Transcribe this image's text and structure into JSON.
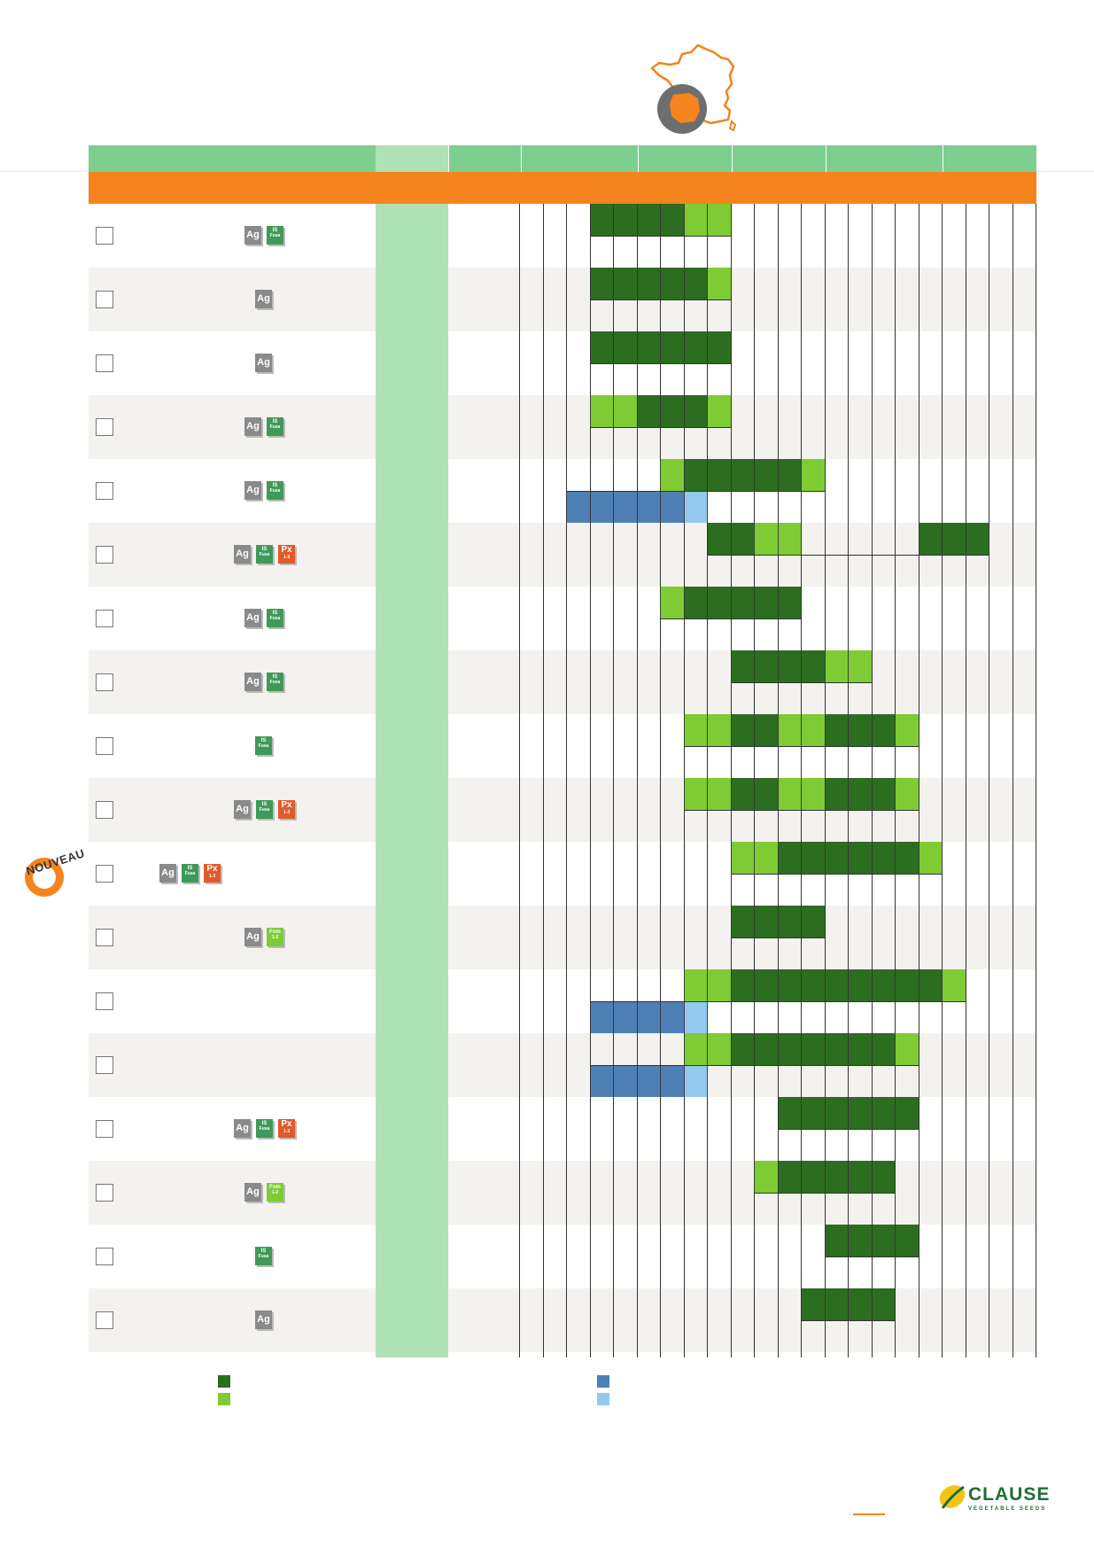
{
  "badges": {
    "ag": "Ag",
    "is": "IS",
    "fusa": "Fusa",
    "px": "Px",
    "px_sub": "1-3",
    "fom": "Fom",
    "fom_sub": "1-2"
  },
  "new_label": "NOUVEAU",
  "logo": {
    "name": "CLAUSE",
    "tagline": "VEGETABLE SEEDS"
  },
  "colors": {
    "header_green": "#7dce8f",
    "orange": "#f5841f",
    "dark_green": "#2c6e1f",
    "light_green": "#7ecb34",
    "blue": "#4e7fb5",
    "light_blue": "#93c9ee",
    "pale_green_column": "#aee2b5",
    "alt_row": "#f4f2ef"
  },
  "legend": [
    {
      "color": "dark_green"
    },
    {
      "color": "light_green"
    },
    {
      "color": "blue"
    },
    {
      "color": "light_blue"
    }
  ],
  "rows": [
    {
      "badges": [
        "ag",
        "is"
      ],
      "top": [
        [
          4,
          7,
          "dark"
        ],
        [
          8,
          9,
          "light"
        ]
      ],
      "bottom": []
    },
    {
      "badges": [
        "ag"
      ],
      "top": [
        [
          4,
          8,
          "dark"
        ],
        [
          9,
          9,
          "light"
        ]
      ],
      "bottom": []
    },
    {
      "badges": [
        "ag"
      ],
      "top": [
        [
          4,
          9,
          "dark"
        ]
      ],
      "bottom": []
    },
    {
      "badges": [
        "ag",
        "is"
      ],
      "top": [
        [
          4,
          5,
          "light"
        ],
        [
          6,
          8,
          "dark"
        ],
        [
          9,
          9,
          "light"
        ]
      ],
      "bottom": []
    },
    {
      "badges": [
        "ag",
        "is"
      ],
      "top": [
        [
          7,
          7,
          "light"
        ],
        [
          8,
          12,
          "dark"
        ],
        [
          13,
          13,
          "light"
        ]
      ],
      "bottom": [
        [
          3,
          7,
          "blue"
        ],
        [
          8,
          8,
          "lblue"
        ]
      ]
    },
    {
      "badges": [
        "ag",
        "is",
        "px"
      ],
      "top": [
        [
          9,
          10,
          "dark"
        ],
        [
          11,
          12,
          "light"
        ],
        [
          18,
          20,
          "dark"
        ]
      ],
      "bottom": []
    },
    {
      "badges": [
        "ag",
        "is"
      ],
      "top": [
        [
          7,
          7,
          "light"
        ],
        [
          8,
          12,
          "dark"
        ]
      ],
      "bottom": []
    },
    {
      "badges": [
        "ag",
        "is"
      ],
      "top": [
        [
          10,
          13,
          "dark"
        ],
        [
          14,
          15,
          "light"
        ]
      ],
      "bottom": []
    },
    {
      "badges": [
        "is"
      ],
      "top": [
        [
          8,
          9,
          "light"
        ],
        [
          10,
          11,
          "dark"
        ],
        [
          12,
          13,
          "light"
        ],
        [
          14,
          16,
          "dark"
        ],
        [
          17,
          17,
          "light"
        ]
      ],
      "bottom": []
    },
    {
      "badges": [
        "ag",
        "is",
        "px"
      ],
      "top": [
        [
          8,
          9,
          "light"
        ],
        [
          10,
          11,
          "dark"
        ],
        [
          12,
          13,
          "light"
        ],
        [
          14,
          16,
          "dark"
        ],
        [
          17,
          17,
          "light"
        ]
      ],
      "bottom": []
    },
    {
      "badges": [
        "ag",
        "is",
        "px"
      ],
      "new": true,
      "top": [
        [
          10,
          11,
          "light"
        ],
        [
          12,
          17,
          "dark"
        ],
        [
          18,
          18,
          "light"
        ]
      ],
      "bottom": []
    },
    {
      "badges": [
        "ag",
        "fom"
      ],
      "top": [
        [
          10,
          13,
          "dark"
        ]
      ],
      "bottom": []
    },
    {
      "badges": [],
      "top": [
        [
          8,
          9,
          "light"
        ],
        [
          10,
          18,
          "dark"
        ],
        [
          19,
          19,
          "light"
        ]
      ],
      "bottom": [
        [
          4,
          7,
          "blue"
        ],
        [
          8,
          8,
          "lblue"
        ]
      ]
    },
    {
      "badges": [],
      "top": [
        [
          8,
          9,
          "light"
        ],
        [
          10,
          16,
          "dark"
        ],
        [
          17,
          17,
          "light"
        ]
      ],
      "bottom": [
        [
          4,
          7,
          "blue"
        ],
        [
          8,
          8,
          "lblue"
        ]
      ]
    },
    {
      "badges": [
        "ag",
        "is",
        "px"
      ],
      "top": [
        [
          12,
          17,
          "dark"
        ]
      ],
      "bottom": []
    },
    {
      "badges": [
        "ag",
        "fom"
      ],
      "top": [
        [
          11,
          11,
          "light"
        ],
        [
          12,
          16,
          "dark"
        ]
      ],
      "bottom": []
    },
    {
      "badges": [
        "is"
      ],
      "top": [
        [
          14,
          17,
          "dark"
        ]
      ],
      "bottom": []
    },
    {
      "badges": [
        "ag"
      ],
      "top": [
        [
          13,
          16,
          "dark"
        ]
      ],
      "bottom": []
    }
  ]
}
